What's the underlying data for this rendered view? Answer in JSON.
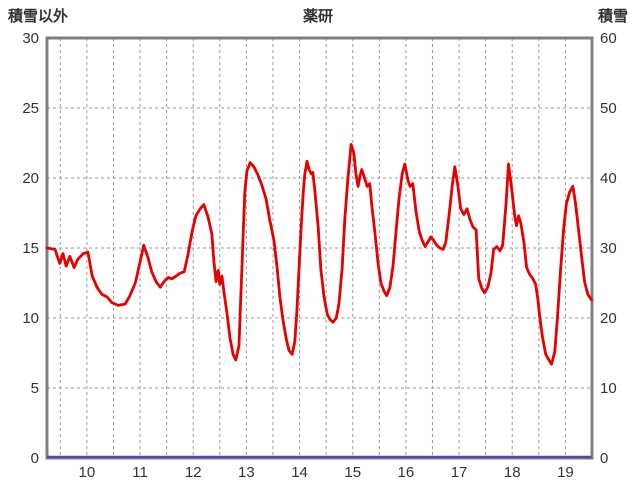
{
  "header": {
    "left_axis_title": "積雪以外",
    "title": "薬研",
    "right_axis_title": "積雪"
  },
  "colors": {
    "line_red": "#e60000",
    "line_purple": "#5b44a8",
    "border_gray": "#7f7f7f",
    "grid_gray": "#9a9a9a",
    "text": "#333333"
  },
  "chart_data": {
    "type": "line",
    "title": "薬研",
    "xlabel": "",
    "ylabel_left": "積雪以外",
    "ylabel_right": "積雪",
    "xlim": [
      9.75,
      20.0
    ],
    "left_axis": {
      "label": "積雪以外",
      "ticks": [
        0,
        5,
        10,
        15,
        20,
        25,
        30
      ],
      "lim": [
        0,
        30
      ]
    },
    "right_axis": {
      "label": "積雪",
      "ticks": [
        0,
        10,
        20,
        30,
        40,
        50,
        60
      ],
      "lim": [
        0,
        60
      ]
    },
    "x_tick_labels": [
      "10",
      "11",
      "12",
      "13",
      "14",
      "15",
      "16",
      "17",
      "18",
      "19"
    ],
    "x_tick_positions": [
      10.5,
      11.5,
      12.5,
      13.5,
      14.5,
      15.5,
      16.5,
      17.5,
      18.5,
      19.5
    ],
    "grid": {
      "h_values": [
        5,
        10,
        15,
        20,
        25
      ],
      "v_step": 0.5,
      "style": "dashed"
    },
    "legend": "none",
    "series": [
      {
        "name": "積雪以外",
        "axis": "left",
        "points": [
          [
            9.75,
            15.0
          ],
          [
            9.9,
            14.9
          ],
          [
            9.99,
            13.9
          ],
          [
            10.05,
            14.6
          ],
          [
            10.11,
            13.7
          ],
          [
            10.18,
            14.4
          ],
          [
            10.26,
            13.6
          ],
          [
            10.33,
            14.2
          ],
          [
            10.43,
            14.6
          ],
          [
            10.52,
            14.7
          ],
          [
            10.6,
            13.0
          ],
          [
            10.69,
            12.2
          ],
          [
            10.78,
            11.7
          ],
          [
            10.88,
            11.5
          ],
          [
            10.97,
            11.1
          ],
          [
            11.09,
            10.9
          ],
          [
            11.22,
            11.0
          ],
          [
            11.31,
            11.6
          ],
          [
            11.41,
            12.5
          ],
          [
            11.5,
            14.0
          ],
          [
            11.57,
            15.2
          ],
          [
            11.65,
            14.3
          ],
          [
            11.72,
            13.3
          ],
          [
            11.8,
            12.6
          ],
          [
            11.88,
            12.2
          ],
          [
            11.95,
            12.6
          ],
          [
            12.03,
            12.9
          ],
          [
            12.1,
            12.8
          ],
          [
            12.18,
            13.0
          ],
          [
            12.25,
            13.2
          ],
          [
            12.33,
            13.3
          ],
          [
            12.4,
            14.5
          ],
          [
            12.48,
            16.2
          ],
          [
            12.55,
            17.3
          ],
          [
            12.63,
            17.8
          ],
          [
            12.7,
            18.1
          ],
          [
            12.78,
            17.2
          ],
          [
            12.85,
            16.0
          ],
          [
            12.89,
            14.0
          ],
          [
            12.93,
            12.6
          ],
          [
            12.97,
            13.4
          ],
          [
            13.0,
            12.4
          ],
          [
            13.04,
            13.0
          ],
          [
            13.08,
            11.8
          ],
          [
            13.14,
            10.2
          ],
          [
            13.19,
            8.6
          ],
          [
            13.25,
            7.4
          ],
          [
            13.3,
            7.0
          ],
          [
            13.36,
            8.0
          ],
          [
            13.4,
            12.0
          ],
          [
            13.44,
            16.0
          ],
          [
            13.47,
            19.0
          ],
          [
            13.51,
            20.5
          ],
          [
            13.57,
            21.1
          ],
          [
            13.64,
            20.8
          ],
          [
            13.72,
            20.2
          ],
          [
            13.79,
            19.5
          ],
          [
            13.87,
            18.5
          ],
          [
            13.94,
            17.0
          ],
          [
            14.02,
            15.5
          ],
          [
            14.08,
            13.5
          ],
          [
            14.13,
            11.5
          ],
          [
            14.19,
            9.8
          ],
          [
            14.25,
            8.5
          ],
          [
            14.3,
            7.7
          ],
          [
            14.36,
            7.4
          ],
          [
            14.41,
            8.3
          ],
          [
            14.45,
            10.5
          ],
          [
            14.49,
            13.5
          ],
          [
            14.53,
            16.5
          ],
          [
            14.57,
            19.0
          ],
          [
            14.6,
            20.3
          ],
          [
            14.64,
            21.2
          ],
          [
            14.68,
            20.6
          ],
          [
            14.72,
            20.3
          ],
          [
            14.75,
            20.4
          ],
          [
            14.79,
            19.0
          ],
          [
            14.85,
            16.5
          ],
          [
            14.9,
            13.5
          ],
          [
            14.96,
            11.5
          ],
          [
            15.02,
            10.3
          ],
          [
            15.07,
            9.9
          ],
          [
            15.13,
            9.7
          ],
          [
            15.19,
            10.0
          ],
          [
            15.24,
            11.0
          ],
          [
            15.3,
            13.5
          ],
          [
            15.35,
            17.0
          ],
          [
            15.41,
            20.0
          ],
          [
            15.47,
            22.4
          ],
          [
            15.52,
            21.8
          ],
          [
            15.56,
            20.3
          ],
          [
            15.6,
            19.4
          ],
          [
            15.64,
            20.2
          ],
          [
            15.67,
            20.6
          ],
          [
            15.73,
            19.9
          ],
          [
            15.77,
            19.4
          ],
          [
            15.82,
            19.6
          ],
          [
            15.86,
            18.0
          ],
          [
            15.92,
            16.0
          ],
          [
            15.98,
            13.8
          ],
          [
            16.03,
            12.5
          ],
          [
            16.09,
            11.9
          ],
          [
            16.14,
            11.6
          ],
          [
            16.2,
            12.2
          ],
          [
            16.26,
            13.8
          ],
          [
            16.31,
            16.0
          ],
          [
            16.37,
            18.5
          ],
          [
            16.43,
            20.3
          ],
          [
            16.48,
            21.0
          ],
          [
            16.54,
            19.8
          ],
          [
            16.58,
            19.4
          ],
          [
            16.63,
            19.6
          ],
          [
            16.69,
            17.6
          ],
          [
            16.75,
            16.2
          ],
          [
            16.8,
            15.6
          ],
          [
            16.86,
            15.1
          ],
          [
            16.91,
            15.4
          ],
          [
            16.97,
            15.8
          ],
          [
            17.03,
            15.5
          ],
          [
            17.08,
            15.2
          ],
          [
            17.14,
            15.0
          ],
          [
            17.2,
            14.9
          ],
          [
            17.25,
            15.4
          ],
          [
            17.31,
            17.3
          ],
          [
            17.37,
            19.4
          ],
          [
            17.42,
            20.8
          ],
          [
            17.48,
            19.4
          ],
          [
            17.53,
            17.8
          ],
          [
            17.59,
            17.4
          ],
          [
            17.65,
            17.8
          ],
          [
            17.7,
            17.1
          ],
          [
            17.76,
            16.5
          ],
          [
            17.82,
            16.3
          ],
          [
            17.87,
            12.8
          ],
          [
            17.93,
            12.1
          ],
          [
            17.98,
            11.8
          ],
          [
            18.04,
            12.2
          ],
          [
            18.1,
            13.2
          ],
          [
            18.15,
            14.9
          ],
          [
            18.21,
            15.1
          ],
          [
            18.27,
            14.8
          ],
          [
            18.32,
            15.2
          ],
          [
            18.38,
            18.0
          ],
          [
            18.43,
            21.0
          ],
          [
            18.49,
            19.2
          ],
          [
            18.55,
            17.2
          ],
          [
            18.58,
            16.6
          ],
          [
            18.62,
            17.3
          ],
          [
            18.66,
            16.8
          ],
          [
            18.72,
            15.4
          ],
          [
            18.77,
            13.6
          ],
          [
            18.83,
            13.1
          ],
          [
            18.89,
            12.8
          ],
          [
            18.94,
            12.4
          ],
          [
            18.98,
            11.4
          ],
          [
            19.02,
            10.0
          ],
          [
            19.07,
            8.6
          ],
          [
            19.13,
            7.4
          ],
          [
            19.19,
            7.0
          ],
          [
            19.24,
            6.7
          ],
          [
            19.3,
            7.6
          ],
          [
            19.35,
            10.0
          ],
          [
            19.41,
            13.5
          ],
          [
            19.47,
            16.5
          ],
          [
            19.52,
            18.2
          ],
          [
            19.58,
            19.0
          ],
          [
            19.64,
            19.4
          ],
          [
            19.69,
            18.2
          ],
          [
            19.75,
            16.2
          ],
          [
            19.81,
            14.2
          ],
          [
            19.86,
            12.6
          ],
          [
            19.92,
            11.7
          ],
          [
            19.99,
            11.3
          ]
        ]
      },
      {
        "name": "積雪",
        "axis": "left",
        "points": [
          [
            9.75,
            0
          ],
          [
            19.99,
            0
          ]
        ]
      }
    ]
  }
}
